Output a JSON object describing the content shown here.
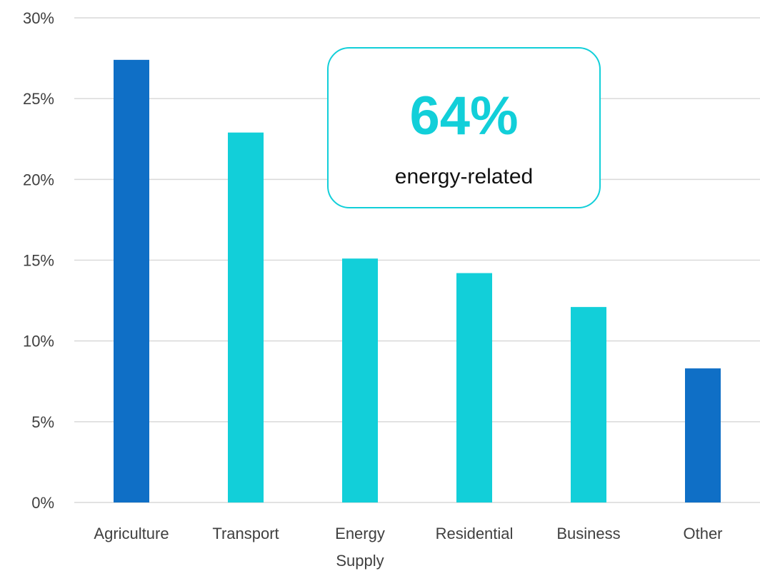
{
  "colors": {
    "primary_bar": "#0f6fc6",
    "secondary_bar": "#12cfd9",
    "gridline": "#d9d9d9",
    "axis_text": "#404040",
    "callout_border": "#12cfd9",
    "callout_value": "#12cfd9",
    "callout_text": "#111111"
  },
  "chart_data": {
    "type": "bar",
    "title": "",
    "xlabel": "",
    "ylabel": "",
    "categories": [
      [
        "Agriculture"
      ],
      [
        "Transport"
      ],
      [
        "Energy",
        "Supply"
      ],
      [
        "Residential"
      ],
      [
        "Business"
      ],
      [
        "Other"
      ]
    ],
    "values": [
      27.4,
      22.9,
      15.1,
      14.2,
      12.1,
      8.3
    ],
    "bar_color_keys": [
      "primary_bar",
      "secondary_bar",
      "secondary_bar",
      "secondary_bar",
      "secondary_bar",
      "primary_bar"
    ],
    "ylim": [
      0,
      30
    ],
    "yticks": [
      0,
      5,
      10,
      15,
      20,
      25,
      30
    ],
    "ytick_labels": [
      "0%",
      "5%",
      "10%",
      "15%",
      "20%",
      "25%",
      "30%"
    ],
    "grid": true,
    "legend": "none",
    "annotation": {
      "value": "64%",
      "text": "energy-related"
    }
  }
}
